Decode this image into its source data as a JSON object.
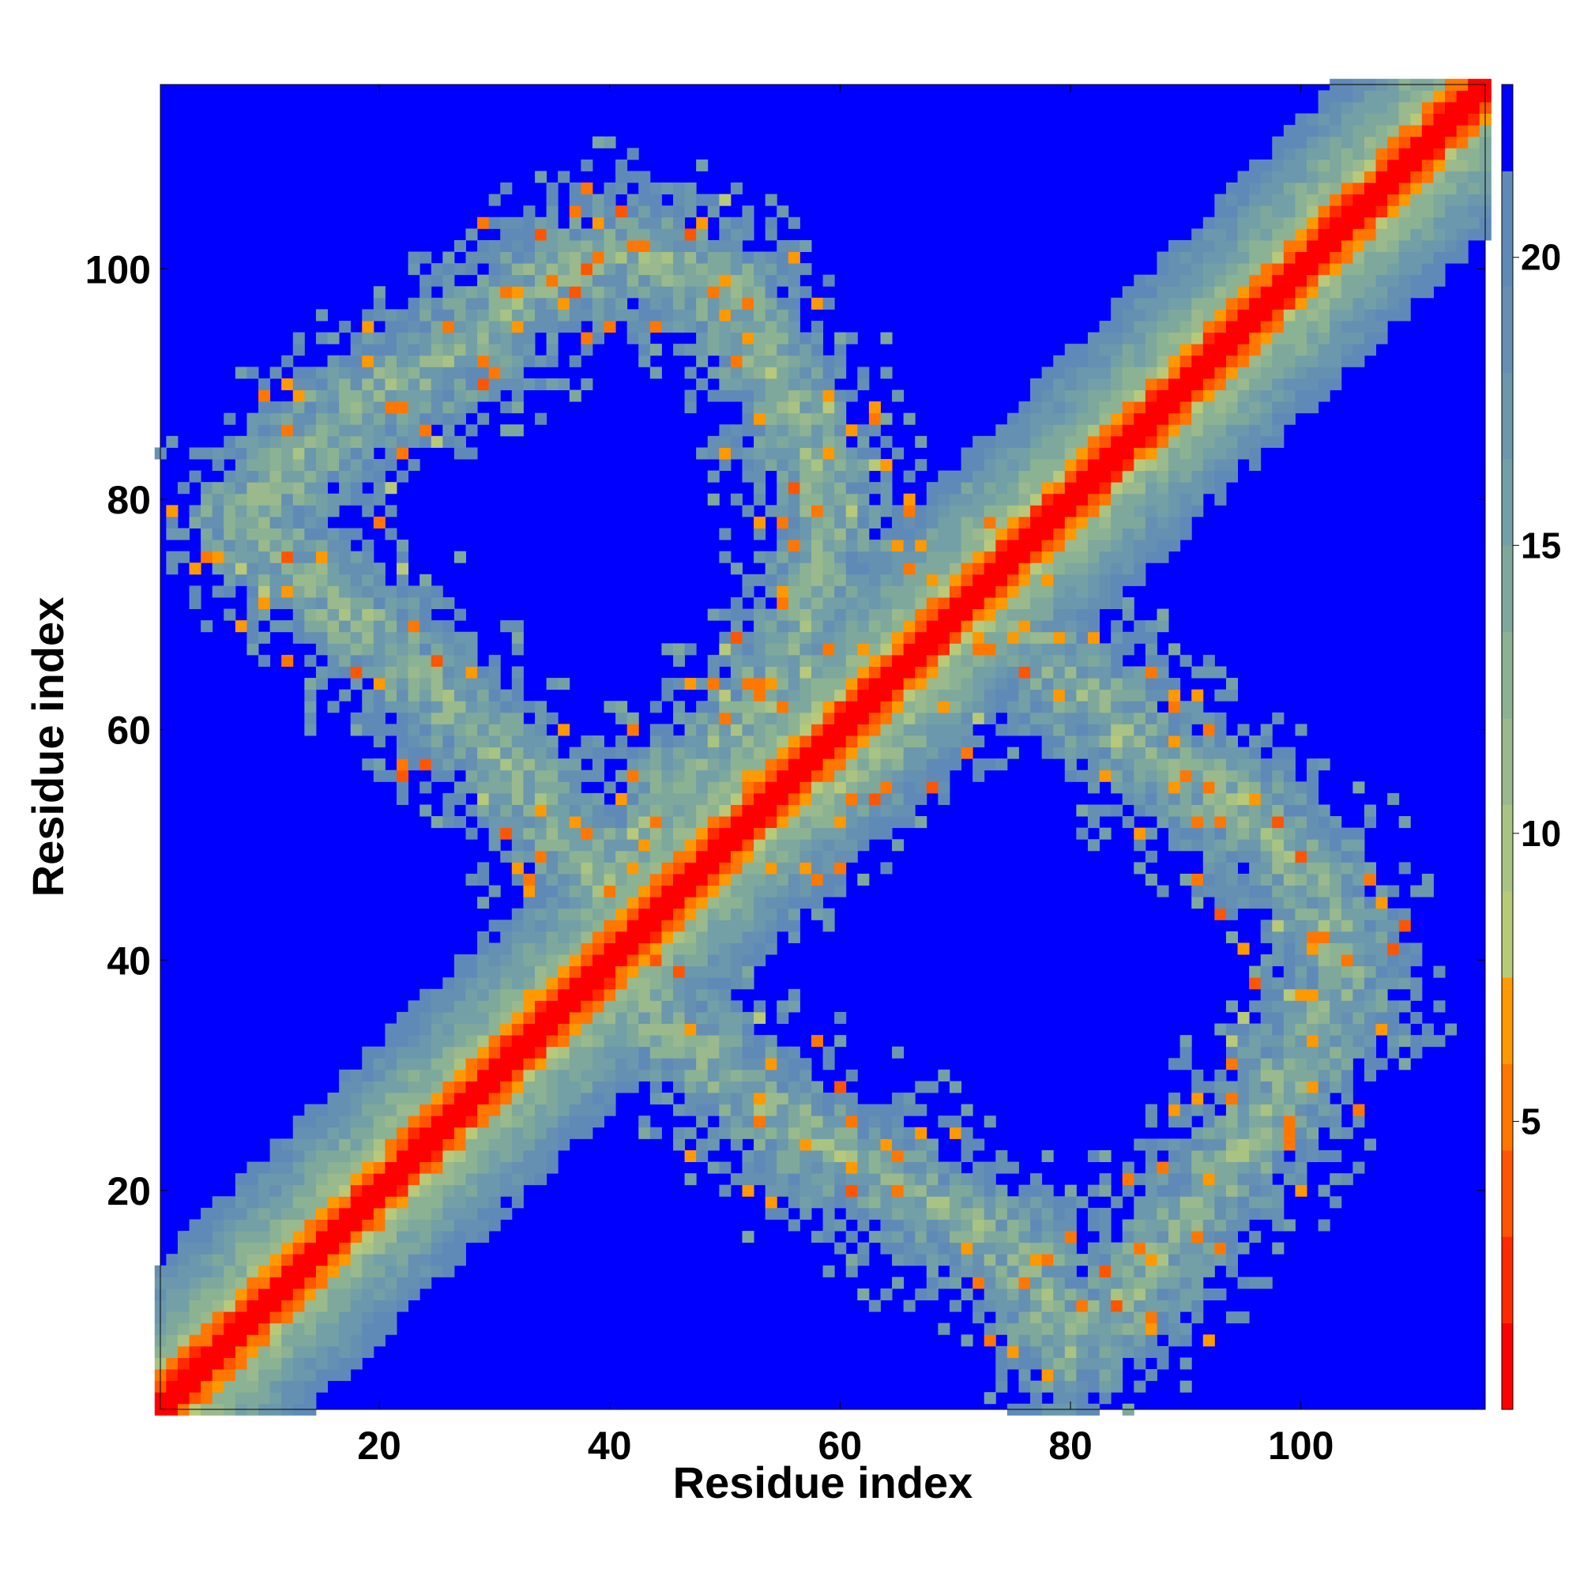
{
  "chart_data": {
    "type": "heatmap",
    "title": "",
    "xlabel": "Residue index",
    "ylabel": "Residue index",
    "x_range": [
      1,
      116
    ],
    "y_range": [
      1,
      116
    ],
    "n_residues": 116,
    "x_ticks": [
      20,
      40,
      60,
      80,
      100
    ],
    "y_ticks": [
      20,
      40,
      60,
      80,
      100
    ],
    "colorbar": {
      "range": [
        0,
        23
      ],
      "ticks": [
        5,
        10,
        15,
        20
      ],
      "levels": [
        {
          "from": 0,
          "to": 1.5,
          "color": "#ff0000"
        },
        {
          "from": 1.5,
          "to": 3,
          "color": "#ff2a00"
        },
        {
          "from": 3,
          "to": 4.5,
          "color": "#ff5500"
        },
        {
          "from": 4.5,
          "to": 6,
          "color": "#ff7700"
        },
        {
          "from": 6,
          "to": 7.5,
          "color": "#ff9900"
        },
        {
          "from": 7.5,
          "to": 9,
          "color": "#b8c97a"
        },
        {
          "from": 9,
          "to": 10.5,
          "color": "#a9c383"
        },
        {
          "from": 10.5,
          "to": 12,
          "color": "#9ab98c"
        },
        {
          "from": 12,
          "to": 13.5,
          "color": "#8cb294"
        },
        {
          "from": 13.5,
          "to": 15,
          "color": "#7fa89c"
        },
        {
          "from": 15,
          "to": 16.5,
          "color": "#73a0a6"
        },
        {
          "from": 16.5,
          "to": 18,
          "color": "#6b98ac"
        },
        {
          "from": 18,
          "to": 19.5,
          "color": "#6590b2"
        },
        {
          "from": 19.5,
          "to": 21.5,
          "color": "#5f8ab8"
        },
        {
          "from": 21.5,
          "to": 23,
          "color": "#0000ff"
        }
      ]
    },
    "background_color": "#0000ff",
    "regions": [
      {
        "name": "diagonal",
        "kind": "band",
        "x0": 1,
        "y0": 1,
        "x1": 116,
        "y1": 116,
        "half_width": 13
      },
      {
        "name": "upper-left-lobe",
        "kind": "ring",
        "points": [
          [
            8,
            78
          ],
          [
            15,
            86
          ],
          [
            25,
            92
          ],
          [
            33,
            98
          ],
          [
            42,
            102
          ],
          [
            50,
            98
          ],
          [
            55,
            90
          ],
          [
            59,
            80
          ],
          [
            58,
            70
          ],
          [
            53,
            62
          ],
          [
            46,
            55
          ],
          [
            40,
            46
          ],
          [
            33,
            55
          ],
          [
            26,
            62
          ],
          [
            20,
            68
          ],
          [
            14,
            73
          ]
        ]
      },
      {
        "name": "lower-right-lobe",
        "kind": "ring",
        "points": [
          [
            40,
            38
          ],
          [
            50,
            30
          ],
          [
            58,
            24
          ],
          [
            66,
            20
          ],
          [
            76,
            14
          ],
          [
            80,
            6
          ],
          [
            86,
            12
          ],
          [
            92,
            20
          ],
          [
            98,
            28
          ],
          [
            104,
            38
          ],
          [
            102,
            46
          ],
          [
            95,
            53
          ],
          [
            87,
            58
          ],
          [
            80,
            64
          ],
          [
            73,
            72
          ],
          [
            65,
            60
          ],
          [
            56,
            53
          ],
          [
            48,
            46
          ]
        ]
      }
    ]
  }
}
